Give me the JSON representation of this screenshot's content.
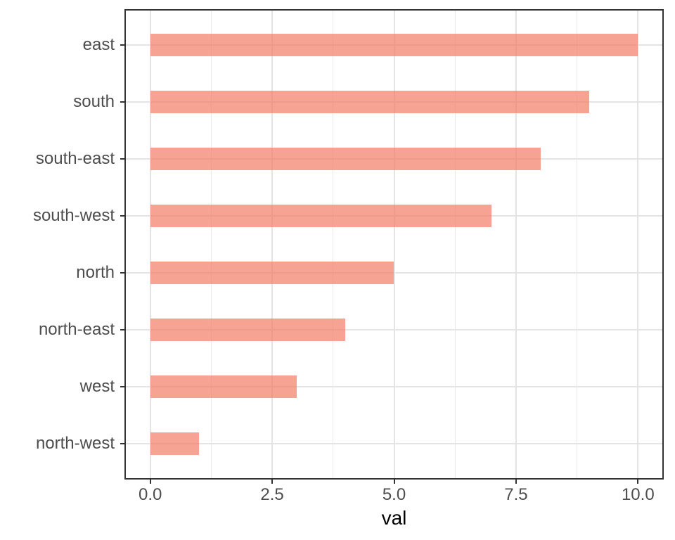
{
  "chart_data": {
    "type": "bar",
    "orientation": "horizontal",
    "title": "",
    "xlabel": "val",
    "ylabel": "",
    "categories": [
      "east",
      "south",
      "south-east",
      "south-west",
      "north",
      "north-east",
      "west",
      "north-west"
    ],
    "values": [
      10,
      9,
      8,
      7,
      5,
      4,
      3,
      1
    ],
    "xlim": [
      -0.5,
      10.5
    ],
    "x_major_ticks": [
      0,
      2.5,
      5,
      7.5,
      10
    ],
    "x_tick_labels": [
      "0.0",
      "2.5",
      "5.0",
      "7.5",
      "10.0"
    ],
    "x_minor_ticks": [
      1.25,
      3.75,
      6.25,
      8.75
    ],
    "category_expand": 0.6,
    "bar_width_fraction": 0.4,
    "grid": true,
    "legend": "none",
    "style": {
      "bar_fill": "#F47C66",
      "bar_opacity": 0.7,
      "grid_major_color": "#E4E4E4",
      "grid_minor_color": "#EAEAEA",
      "panel_border_color": "#333333",
      "panel_background": "#FFFFFF",
      "tick_mark_color": "#333333",
      "tick_label_color": "#4D4D4D",
      "axis_title_color": "#000000"
    }
  }
}
